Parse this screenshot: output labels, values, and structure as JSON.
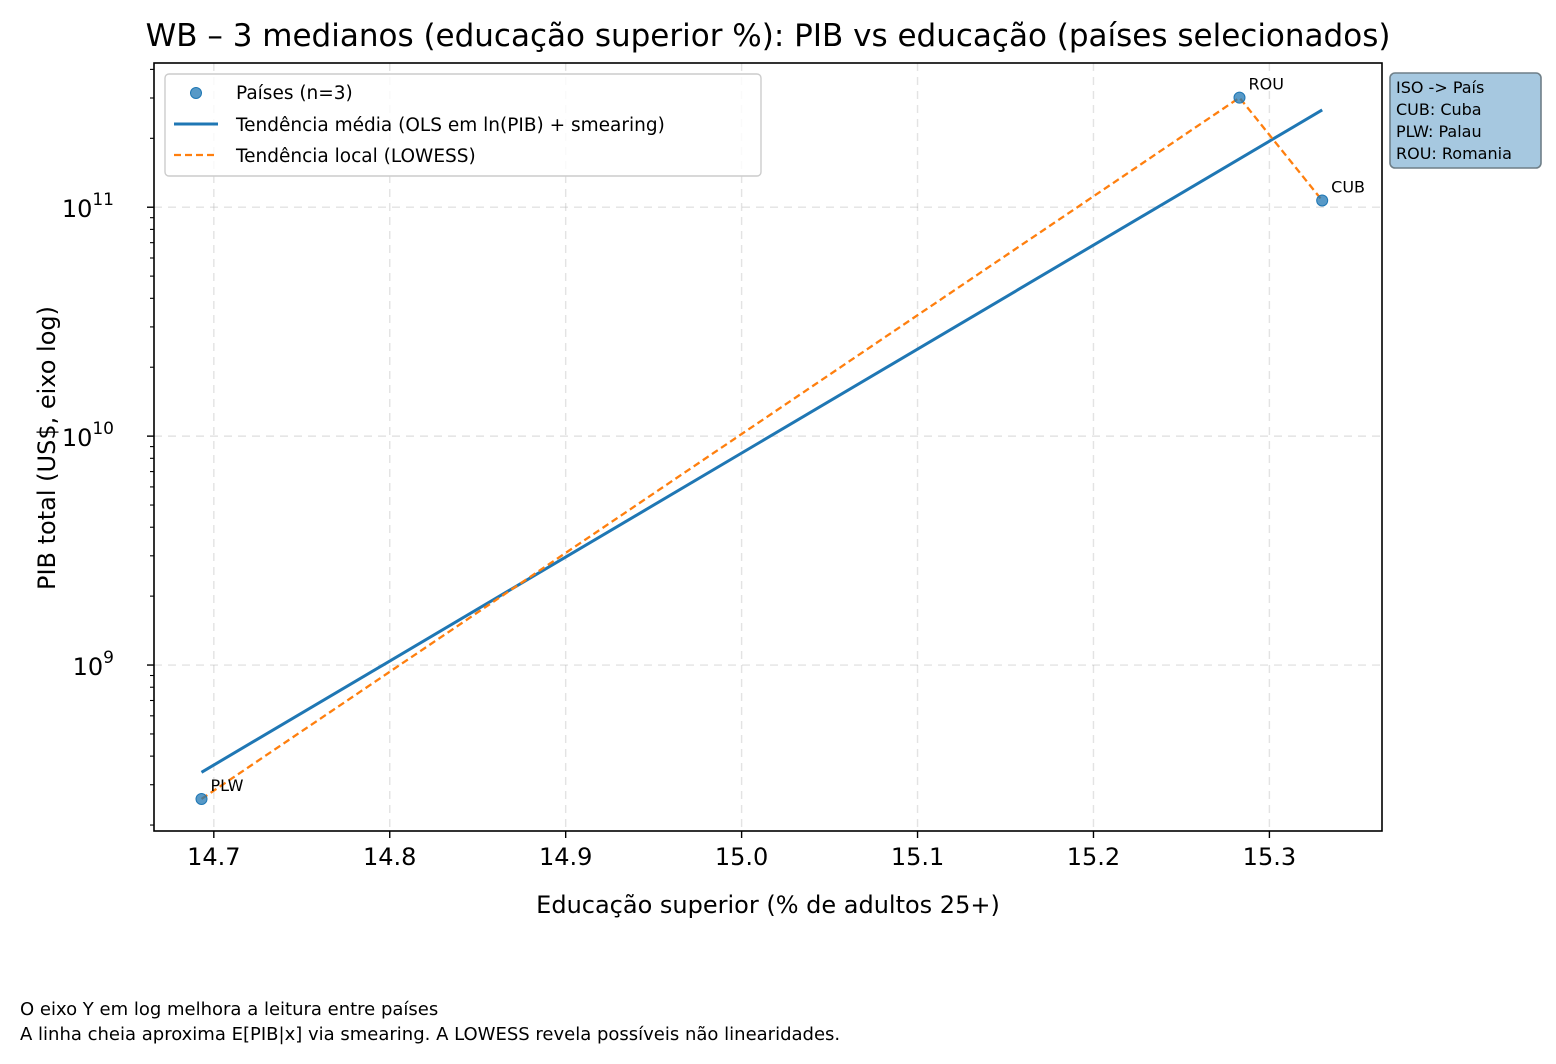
{
  "chart_data": {
    "type": "scatter",
    "title": "WB – 3 medianos (educação superior %): PIB vs educação (países selecionados)",
    "xlabel": "Educação superior (% de adultos 25+)",
    "ylabel": "PIB total (US$, eixo log)",
    "x_ticks": [
      {
        "value": 14.7,
        "label": "14.7"
      },
      {
        "value": 14.8,
        "label": "14.8"
      },
      {
        "value": 14.9,
        "label": "14.9"
      },
      {
        "value": 15.0,
        "label": "15.0"
      },
      {
        "value": 15.1,
        "label": "15.1"
      },
      {
        "value": 15.2,
        "label": "15.2"
      },
      {
        "value": 15.3,
        "label": "15.3"
      }
    ],
    "y_ticks": [
      {
        "exp": 9,
        "base": "10",
        "sup": "9"
      },
      {
        "exp": 10,
        "base": "10",
        "sup": "10"
      },
      {
        "exp": 11,
        "base": "10",
        "sup": "11"
      }
    ],
    "xlim": [
      14.666,
      15.364
    ],
    "ylim_log10": [
      8.275,
      11.63
    ],
    "y_scale": "log",
    "grid": true,
    "legend_position": "upper-left",
    "series": [
      {
        "name": "Países (n=3)",
        "kind": "scatter",
        "color": "#1f77b4",
        "points": [
          {
            "code": "PLW",
            "x": 14.693,
            "y": 260000000
          },
          {
            "code": "ROU",
            "x": 15.283,
            "y": 301000000000
          },
          {
            "code": "CUB",
            "x": 15.33,
            "y": 107000000000
          }
        ]
      },
      {
        "name": "Tendência média (OLS em ln(PIB) + smearing)",
        "kind": "line",
        "color": "#1f77b4",
        "points": [
          {
            "x": 14.693,
            "y": 340000000
          },
          {
            "x": 15.33,
            "y": 266000000000
          }
        ]
      },
      {
        "name": "Tendência local (LOWESS)",
        "kind": "dashed-line",
        "color": "#ff7f0e",
        "points": [
          {
            "x": 14.693,
            "y": 260000000
          },
          {
            "x": 15.283,
            "y": 301000000000
          },
          {
            "x": 15.33,
            "y": 107000000000
          }
        ]
      }
    ],
    "annotation_box": {
      "lines": [
        "ISO -> País",
        "CUB: Cuba",
        "PLW: Palau",
        "ROU: Romania"
      ],
      "color": "#a6c8e0"
    }
  },
  "footer": {
    "line1": "O eixo Y em log melhora a leitura entre países",
    "line2": "A linha cheia aproxima E[PIB|x] via smearing. A LOWESS revela possíveis não linearidades."
  }
}
